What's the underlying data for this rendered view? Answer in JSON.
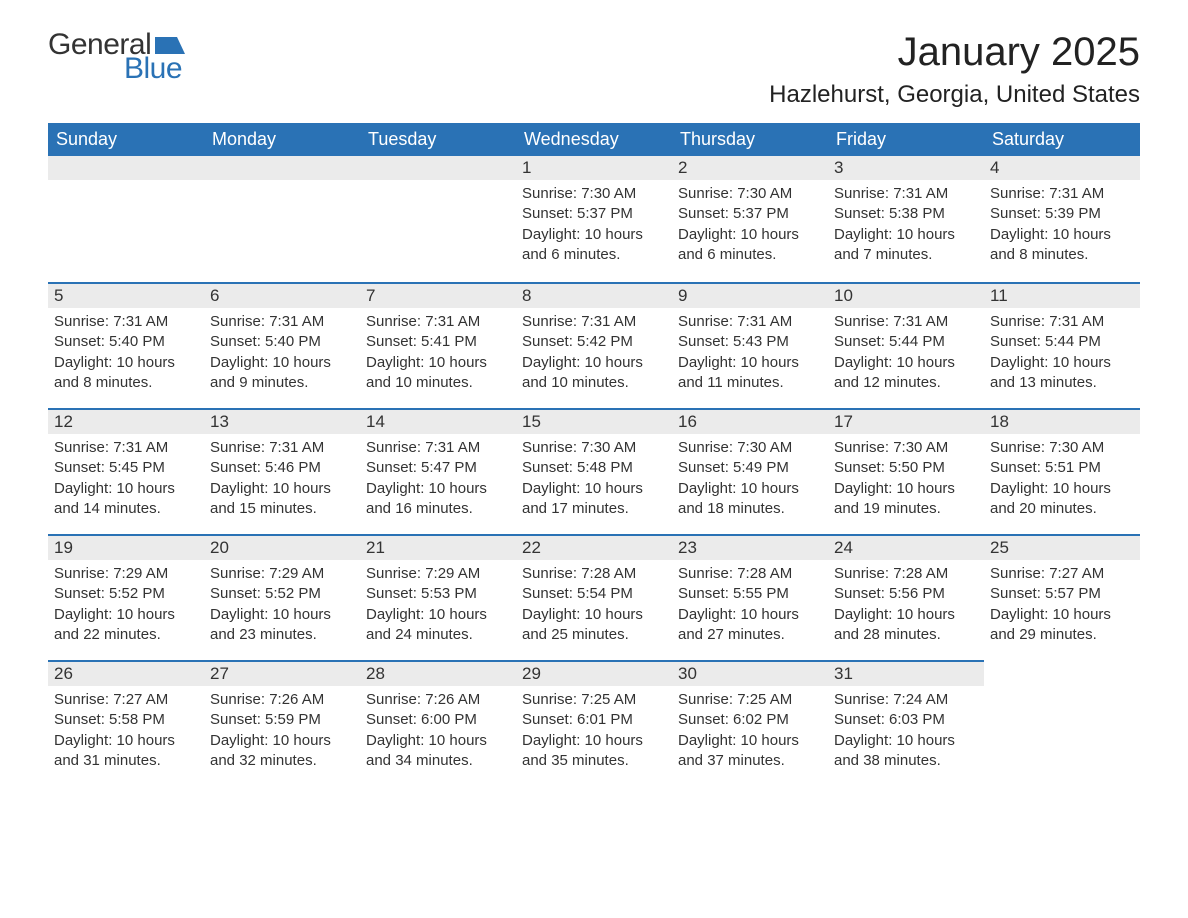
{
  "logo": {
    "word1": "General",
    "word2": "Blue",
    "flag_color": "#2a72b5"
  },
  "title": "January 2025",
  "location": "Hazlehurst, Georgia, United States",
  "colors": {
    "header_bg": "#2a72b5",
    "header_text": "#ffffff",
    "daynum_bg": "#ebebeb",
    "text": "#333333",
    "row_border": "#2a72b5",
    "page_bg": "#ffffff"
  },
  "typography": {
    "title_fontsize": 40,
    "location_fontsize": 24,
    "weekday_fontsize": 18,
    "daynum_fontsize": 17,
    "body_fontsize": 15
  },
  "weekdays": [
    "Sunday",
    "Monday",
    "Tuesday",
    "Wednesday",
    "Thursday",
    "Friday",
    "Saturday"
  ],
  "labels": {
    "sunrise": "Sunrise:",
    "sunset": "Sunset:",
    "daylight": "Daylight:"
  },
  "weeks": [
    [
      null,
      null,
      null,
      {
        "n": "1",
        "sunrise": "7:30 AM",
        "sunset": "5:37 PM",
        "daylight": "10 hours and 6 minutes."
      },
      {
        "n": "2",
        "sunrise": "7:30 AM",
        "sunset": "5:37 PM",
        "daylight": "10 hours and 6 minutes."
      },
      {
        "n": "3",
        "sunrise": "7:31 AM",
        "sunset": "5:38 PM",
        "daylight": "10 hours and 7 minutes."
      },
      {
        "n": "4",
        "sunrise": "7:31 AM",
        "sunset": "5:39 PM",
        "daylight": "10 hours and 8 minutes."
      }
    ],
    [
      {
        "n": "5",
        "sunrise": "7:31 AM",
        "sunset": "5:40 PM",
        "daylight": "10 hours and 8 minutes."
      },
      {
        "n": "6",
        "sunrise": "7:31 AM",
        "sunset": "5:40 PM",
        "daylight": "10 hours and 9 minutes."
      },
      {
        "n": "7",
        "sunrise": "7:31 AM",
        "sunset": "5:41 PM",
        "daylight": "10 hours and 10 minutes."
      },
      {
        "n": "8",
        "sunrise": "7:31 AM",
        "sunset": "5:42 PM",
        "daylight": "10 hours and 10 minutes."
      },
      {
        "n": "9",
        "sunrise": "7:31 AM",
        "sunset": "5:43 PM",
        "daylight": "10 hours and 11 minutes."
      },
      {
        "n": "10",
        "sunrise": "7:31 AM",
        "sunset": "5:44 PM",
        "daylight": "10 hours and 12 minutes."
      },
      {
        "n": "11",
        "sunrise": "7:31 AM",
        "sunset": "5:44 PM",
        "daylight": "10 hours and 13 minutes."
      }
    ],
    [
      {
        "n": "12",
        "sunrise": "7:31 AM",
        "sunset": "5:45 PM",
        "daylight": "10 hours and 14 minutes."
      },
      {
        "n": "13",
        "sunrise": "7:31 AM",
        "sunset": "5:46 PM",
        "daylight": "10 hours and 15 minutes."
      },
      {
        "n": "14",
        "sunrise": "7:31 AM",
        "sunset": "5:47 PM",
        "daylight": "10 hours and 16 minutes."
      },
      {
        "n": "15",
        "sunrise": "7:30 AM",
        "sunset": "5:48 PM",
        "daylight": "10 hours and 17 minutes."
      },
      {
        "n": "16",
        "sunrise": "7:30 AM",
        "sunset": "5:49 PM",
        "daylight": "10 hours and 18 minutes."
      },
      {
        "n": "17",
        "sunrise": "7:30 AM",
        "sunset": "5:50 PM",
        "daylight": "10 hours and 19 minutes."
      },
      {
        "n": "18",
        "sunrise": "7:30 AM",
        "sunset": "5:51 PM",
        "daylight": "10 hours and 20 minutes."
      }
    ],
    [
      {
        "n": "19",
        "sunrise": "7:29 AM",
        "sunset": "5:52 PM",
        "daylight": "10 hours and 22 minutes."
      },
      {
        "n": "20",
        "sunrise": "7:29 AM",
        "sunset": "5:52 PM",
        "daylight": "10 hours and 23 minutes."
      },
      {
        "n": "21",
        "sunrise": "7:29 AM",
        "sunset": "5:53 PM",
        "daylight": "10 hours and 24 minutes."
      },
      {
        "n": "22",
        "sunrise": "7:28 AM",
        "sunset": "5:54 PM",
        "daylight": "10 hours and 25 minutes."
      },
      {
        "n": "23",
        "sunrise": "7:28 AM",
        "sunset": "5:55 PM",
        "daylight": "10 hours and 27 minutes."
      },
      {
        "n": "24",
        "sunrise": "7:28 AM",
        "sunset": "5:56 PM",
        "daylight": "10 hours and 28 minutes."
      },
      {
        "n": "25",
        "sunrise": "7:27 AM",
        "sunset": "5:57 PM",
        "daylight": "10 hours and 29 minutes."
      }
    ],
    [
      {
        "n": "26",
        "sunrise": "7:27 AM",
        "sunset": "5:58 PM",
        "daylight": "10 hours and 31 minutes."
      },
      {
        "n": "27",
        "sunrise": "7:26 AM",
        "sunset": "5:59 PM",
        "daylight": "10 hours and 32 minutes."
      },
      {
        "n": "28",
        "sunrise": "7:26 AM",
        "sunset": "6:00 PM",
        "daylight": "10 hours and 34 minutes."
      },
      {
        "n": "29",
        "sunrise": "7:25 AM",
        "sunset": "6:01 PM",
        "daylight": "10 hours and 35 minutes."
      },
      {
        "n": "30",
        "sunrise": "7:25 AM",
        "sunset": "6:02 PM",
        "daylight": "10 hours and 37 minutes."
      },
      {
        "n": "31",
        "sunrise": "7:24 AM",
        "sunset": "6:03 PM",
        "daylight": "10 hours and 38 minutes."
      },
      null
    ]
  ]
}
